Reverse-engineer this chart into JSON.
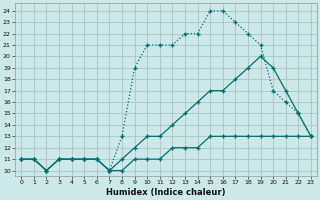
{
  "xlabel": "Humidex (Indice chaleur)",
  "background_color": "#cce8e8",
  "line_color": "#007070",
  "grid_color": "#aacccc",
  "xlim": [
    -0.5,
    23.5
  ],
  "ylim": [
    9.5,
    24.7
  ],
  "xticks": [
    0,
    1,
    2,
    3,
    4,
    5,
    6,
    7,
    8,
    9,
    10,
    11,
    12,
    13,
    14,
    15,
    16,
    17,
    18,
    19,
    20,
    21,
    22,
    23
  ],
  "yticks": [
    10,
    11,
    12,
    13,
    14,
    15,
    16,
    17,
    18,
    19,
    20,
    21,
    22,
    23,
    24
  ],
  "series": [
    {
      "x": [
        0,
        1,
        2,
        3,
        4,
        5,
        6,
        7,
        8,
        9,
        10,
        11,
        12,
        13,
        14,
        15,
        16,
        17,
        18,
        19,
        20,
        21,
        22,
        23
      ],
      "y": [
        11,
        11,
        10,
        11,
        11,
        11,
        11,
        10,
        13,
        19,
        21,
        21,
        21,
        22,
        22,
        24,
        24,
        23,
        22,
        21,
        17,
        16,
        15,
        13
      ],
      "linestyle": "dotted",
      "linewidth": 0.9
    },
    {
      "x": [
        0,
        1,
        2,
        3,
        4,
        5,
        6,
        7,
        8,
        9,
        10,
        11,
        12,
        13,
        14,
        15,
        16,
        17,
        18,
        19,
        20,
        21,
        22,
        23
      ],
      "y": [
        11,
        11,
        10,
        11,
        11,
        11,
        11,
        10,
        11,
        12,
        13,
        13,
        14,
        15,
        16,
        17,
        17,
        18,
        19,
        20,
        19,
        17,
        15,
        13
      ],
      "linestyle": "solid",
      "linewidth": 0.9
    },
    {
      "x": [
        0,
        1,
        2,
        3,
        4,
        5,
        6,
        7,
        8,
        9,
        10,
        11,
        12,
        13,
        14,
        15,
        16,
        17,
        18,
        19,
        20,
        21,
        22,
        23
      ],
      "y": [
        11,
        11,
        10,
        11,
        11,
        11,
        11,
        10,
        10,
        11,
        11,
        11,
        12,
        12,
        12,
        13,
        13,
        13,
        13,
        13,
        13,
        13,
        13,
        13
      ],
      "linestyle": "solid",
      "linewidth": 0.9
    }
  ]
}
